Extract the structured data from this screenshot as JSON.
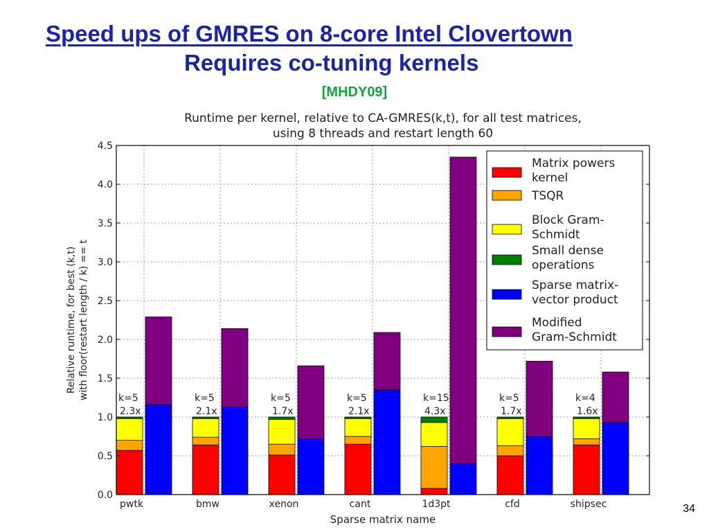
{
  "slide": {
    "title_line1": "Speed ups of GMRES on 8-core Intel Clovertown",
    "title_line2": "Requires co-tuning kernels",
    "citation": "[MHDY09]",
    "page_number": "34"
  },
  "chart_data": {
    "type": "bar",
    "stacked": true,
    "title": "Runtime per kernel, relative to CA-GMRES(k,t), for all test matrices, using 8 threads and restart length 60",
    "title_lines": [
      "Runtime per kernel, relative to CA-GMRES(k,t), for all test matrices,",
      "using 8 threads and restart length 60"
    ],
    "xlabel": "Sparse matrix name",
    "ylabel": "Relative runtime, for best (k,t) with floor(restart length / k) == t",
    "ylabel_lines": [
      "Relative runtime, for best (k,t)",
      "with floor(restart length / k) == t"
    ],
    "ylim": [
      0,
      4.5
    ],
    "yticks": [
      "0.0",
      "0.5",
      "1.0",
      "1.5",
      "2.0",
      "2.5",
      "3.0",
      "3.5",
      "4.0",
      "4.5"
    ],
    "grid": true,
    "legend_position": "upper right",
    "categories": [
      "pwtk",
      "bmw",
      "xenon",
      "cant",
      "1d3pt",
      "cfd",
      "shipsec"
    ],
    "bar_annotations": [
      {
        "k": "k=5",
        "speedup": "2.3x"
      },
      {
        "k": "k=5",
        "speedup": "2.1x"
      },
      {
        "k": "k=5",
        "speedup": "1.7x"
      },
      {
        "k": "k=5",
        "speedup": "2.1x"
      },
      {
        "k": "k=15",
        "speedup": "4.3x"
      },
      {
        "k": "k=5",
        "speedup": "1.7x"
      },
      {
        "k": "k=4",
        "speedup": "1.6x"
      }
    ],
    "legend": [
      {
        "key": "mpk",
        "lines": [
          "Matrix powers",
          "kernel"
        ],
        "color": "#ff0000"
      },
      {
        "key": "tsqr",
        "lines": [
          "TSQR"
        ],
        "color": "#ffa500"
      },
      {
        "key": "bgs",
        "lines": [
          "Block Gram-",
          "Schmidt"
        ],
        "color": "#ffff00"
      },
      {
        "key": "sdo",
        "lines": [
          "Small dense",
          "operations"
        ],
        "color": "#008000"
      },
      {
        "key": "spmv",
        "lines": [
          "Sparse matrix-",
          "vector product"
        ],
        "color": "#0000ff"
      },
      {
        "key": "mgs",
        "lines": [
          "Modified",
          "Gram-Schmidt"
        ],
        "color": "#800080"
      }
    ],
    "ca_gmres_bars": [
      {
        "mpk": 0.57,
        "tsqr": 0.13,
        "bgs": 0.28,
        "sdo": 0.02
      },
      {
        "mpk": 0.64,
        "tsqr": 0.1,
        "bgs": 0.24,
        "sdo": 0.02
      },
      {
        "mpk": 0.51,
        "tsqr": 0.14,
        "bgs": 0.32,
        "sdo": 0.03
      },
      {
        "mpk": 0.65,
        "tsqr": 0.1,
        "bgs": 0.23,
        "sdo": 0.02
      },
      {
        "mpk": 0.08,
        "tsqr": 0.54,
        "bgs": 0.31,
        "sdo": 0.07
      },
      {
        "mpk": 0.5,
        "tsqr": 0.13,
        "bgs": 0.35,
        "sdo": 0.02
      },
      {
        "mpk": 0.64,
        "tsqr": 0.08,
        "bgs": 0.26,
        "sdo": 0.02
      }
    ],
    "gmres_bars": [
      {
        "spmv": 1.16,
        "mgs": 1.13
      },
      {
        "spmv": 1.13,
        "mgs": 1.01
      },
      {
        "spmv": 0.72,
        "mgs": 0.94
      },
      {
        "spmv": 1.35,
        "mgs": 0.74
      },
      {
        "spmv": 0.4,
        "mgs": 3.95
      },
      {
        "spmv": 0.75,
        "mgs": 0.97
      },
      {
        "spmv": 0.93,
        "mgs": 0.65
      }
    ]
  }
}
